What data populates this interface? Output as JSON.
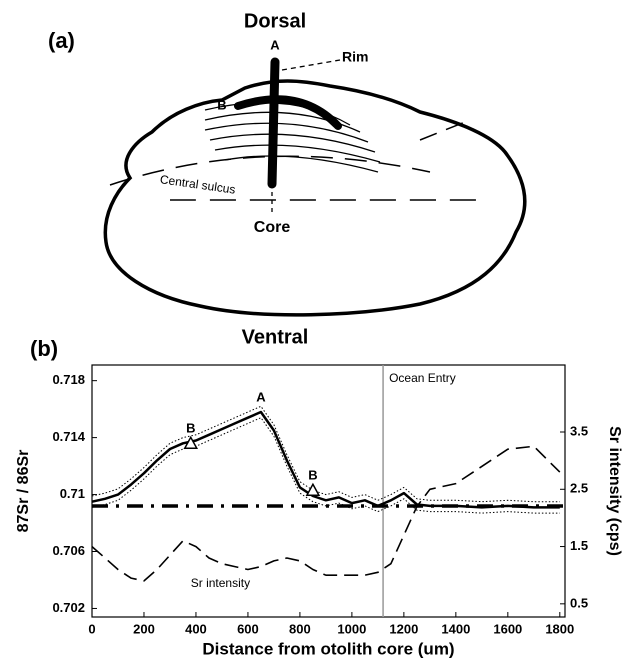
{
  "panel_a": {
    "panel_label": "(a)",
    "dorsal": "Dorsal",
    "ventral": "Ventral",
    "point_a": "A",
    "point_b": "B",
    "rim": "Rim",
    "sulcus": "Central sulcus",
    "core": "Core"
  },
  "chart_data": {
    "type": "line",
    "panel_label": "(b)",
    "x_label": "Distance from otolith core (um)",
    "y_label": "87Sr / 86Sr",
    "y2_label": "Sr intensity (cps)",
    "x": [
      0,
      50,
      100,
      150,
      200,
      250,
      300,
      350,
      400,
      450,
      500,
      550,
      600,
      650,
      700,
      750,
      800,
      850,
      900,
      950,
      1000,
      1050,
      1100,
      1150,
      1200,
      1250,
      1300,
      1400,
      1500,
      1600,
      1700,
      1800
    ],
    "series": [
      {
        "color": "#000000",
        "style": "solid",
        "axis": "y",
        "values": [
          0.7095,
          0.7097,
          0.71,
          0.7107,
          0.7115,
          0.7124,
          0.7132,
          0.7136,
          0.7138,
          0.7142,
          0.7146,
          0.715,
          0.7154,
          0.7158,
          0.7145,
          0.7124,
          0.7105,
          0.7099,
          0.7096,
          0.7098,
          0.7094,
          0.7096,
          0.7092,
          0.7096,
          0.7101,
          0.7093,
          0.7092,
          0.7092,
          0.7091,
          0.7092,
          0.7091,
          0.7091
        ]
      },
      {
        "color": "#000000",
        "style": "dotted",
        "axis": "y",
        "values": [
          0.7099,
          0.7101,
          0.7104,
          0.7111,
          0.7119,
          0.7128,
          0.7136,
          0.714,
          0.7142,
          0.7146,
          0.715,
          0.7154,
          0.7158,
          0.7162,
          0.7149,
          0.7128,
          0.7109,
          0.7103,
          0.71,
          0.7102,
          0.7098,
          0.71,
          0.7096,
          0.71,
          0.7105,
          0.7097,
          0.7096,
          0.7096,
          0.7095,
          0.7096,
          0.7095,
          0.7095
        ]
      },
      {
        "color": "#000000",
        "style": "dotted",
        "axis": "y",
        "values": [
          0.7091,
          0.7093,
          0.7096,
          0.7103,
          0.7111,
          0.712,
          0.7128,
          0.7132,
          0.7134,
          0.7138,
          0.7142,
          0.7146,
          0.715,
          0.7154,
          0.7141,
          0.712,
          0.7101,
          0.7095,
          0.7092,
          0.7094,
          0.709,
          0.7092,
          0.7088,
          0.7092,
          0.7097,
          0.7089,
          0.7088,
          0.7088,
          0.7087,
          0.7088,
          0.7087,
          0.7087
        ]
      },
      {
        "color": "#000000",
        "style": "dashed",
        "axis": "y2",
        "values": [
          1.5,
          1.3,
          1.1,
          0.95,
          0.9,
          1.1,
          1.35,
          1.6,
          1.5,
          1.3,
          1.2,
          1.15,
          1.1,
          1.15,
          1.25,
          1.3,
          1.25,
          1.1,
          1.0,
          1.0,
          1.0,
          1.0,
          1.05,
          1.2,
          1.7,
          2.2,
          2.5,
          2.6,
          2.9,
          3.2,
          3.25,
          2.8
        ]
      }
    ],
    "reference_line": {
      "value": 0.7092,
      "color": "#000000"
    },
    "ocean_entry": {
      "x": 1120,
      "label": "Ocean Entry",
      "color": "#999999"
    },
    "annotations": [
      {
        "label": "B",
        "x": 380,
        "y": 0.7136
      },
      {
        "label": "A",
        "x": 650,
        "y": 0.7158
      },
      {
        "label": "B",
        "x": 850,
        "y": 0.7103
      }
    ],
    "intensity_label": {
      "label": "Sr intensity",
      "x": 380,
      "y2": 0.85
    },
    "xlim": [
      0,
      1820
    ],
    "xticks": [
      0,
      200,
      400,
      600,
      800,
      1000,
      1200,
      1400,
      1600,
      1800
    ],
    "ylim": [
      0.7014,
      0.7191
    ],
    "yticks": [
      0.702,
      0.706,
      0.71,
      0.714,
      0.718
    ],
    "y2lim": [
      0.27,
      4.67
    ],
    "y2ticks": [
      0.5,
      1.5,
      2.5,
      3.5
    ]
  }
}
